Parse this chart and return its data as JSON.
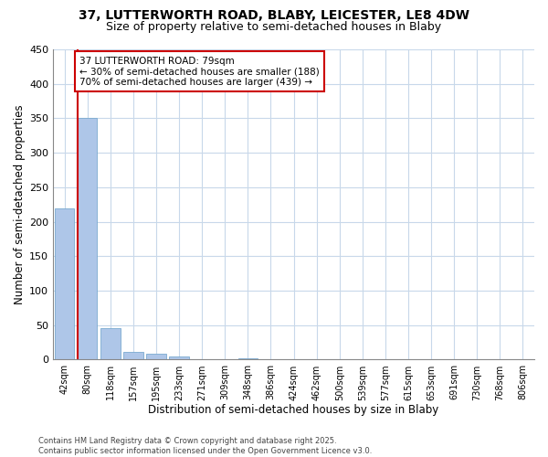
{
  "title1": "37, LUTTERWORTH ROAD, BLABY, LEICESTER, LE8 4DW",
  "title2": "Size of property relative to semi-detached houses in Blaby",
  "xlabel": "Distribution of semi-detached houses by size in Blaby",
  "ylabel": "Number of semi-detached properties",
  "categories": [
    "42sqm",
    "80sqm",
    "118sqm",
    "157sqm",
    "195sqm",
    "233sqm",
    "271sqm",
    "309sqm",
    "348sqm",
    "386sqm",
    "424sqm",
    "462sqm",
    "500sqm",
    "539sqm",
    "577sqm",
    "615sqm",
    "653sqm",
    "691sqm",
    "730sqm",
    "768sqm",
    "806sqm"
  ],
  "values": [
    220,
    350,
    46,
    11,
    8,
    5,
    1,
    0,
    2,
    0,
    0,
    0,
    0,
    0,
    0,
    0,
    0,
    0,
    0,
    0,
    1
  ],
  "bar_color": "#aec6e8",
  "bar_edge_color": "#7aaad0",
  "property_label": "37 LUTTERWORTH ROAD: 79sqm",
  "smaller_pct": 30,
  "smaller_count": 188,
  "larger_pct": 70,
  "larger_count": 439,
  "annotation_box_color": "#cc0000",
  "vline_color": "#cc0000",
  "ylim": [
    0,
    450
  ],
  "yticks": [
    0,
    50,
    100,
    150,
    200,
    250,
    300,
    350,
    400,
    450
  ],
  "bg_color": "#ffffff",
  "grid_color": "#c8d8ea",
  "footnote": "Contains HM Land Registry data © Crown copyright and database right 2025.\nContains public sector information licensed under the Open Government Licence v3.0.",
  "title1_fontsize": 10,
  "title2_fontsize": 9,
  "xlabel_fontsize": 8.5,
  "ylabel_fontsize": 8.5,
  "tick_fontsize": 7,
  "annot_fontsize": 7.5,
  "footnote_fontsize": 6
}
